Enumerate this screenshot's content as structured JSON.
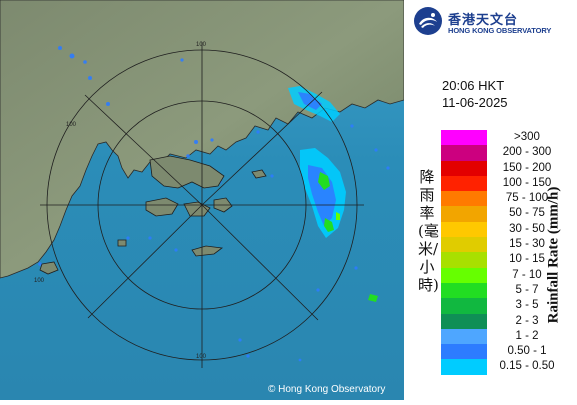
{
  "brand": {
    "name_cn": "香港天文台",
    "name_en": "HONG KONG OBSERVATORY",
    "primary_color": "#1d3f8f"
  },
  "radar": {
    "time": "20:06 HKT",
    "date": "11-06-2025",
    "range_ring_labels": [
      "100",
      "100",
      "100",
      "100"
    ],
    "copyright": "© Hong Kong Observatory"
  },
  "legend": {
    "title_cn": "降雨率(毫米/小時)",
    "title_en": "Rainfall Rate (mm/h)",
    "items": [
      {
        "label": ">300",
        "color": "#ff00ff"
      },
      {
        "label": "200 - 300",
        "color": "#cc007f"
      },
      {
        "label": "150 - 200",
        "color": "#e30000"
      },
      {
        "label": "100 - 150",
        "color": "#ff2200"
      },
      {
        "label": "75 - 100",
        "color": "#ff7a00"
      },
      {
        "label": "50 - 75",
        "color": "#f2a500"
      },
      {
        "label": "30 - 50",
        "color": "#ffc800"
      },
      {
        "label": "15 - 30",
        "color": "#e0cc00"
      },
      {
        "label": "10 - 15",
        "color": "#a8e000"
      },
      {
        "label": "7 - 10",
        "color": "#66ff00"
      },
      {
        "label": "5 - 7",
        "color": "#22dd22"
      },
      {
        "label": "3 - 5",
        "color": "#11b840"
      },
      {
        "label": "2 - 3",
        "color": "#0f8f56"
      },
      {
        "label": "1 - 2",
        "color": "#4ea6ff"
      },
      {
        "label": "0.50 - 1",
        "color": "#2d7cff"
      },
      {
        "label": "0.15 - 0.50",
        "color": "#00ccff"
      }
    ]
  }
}
